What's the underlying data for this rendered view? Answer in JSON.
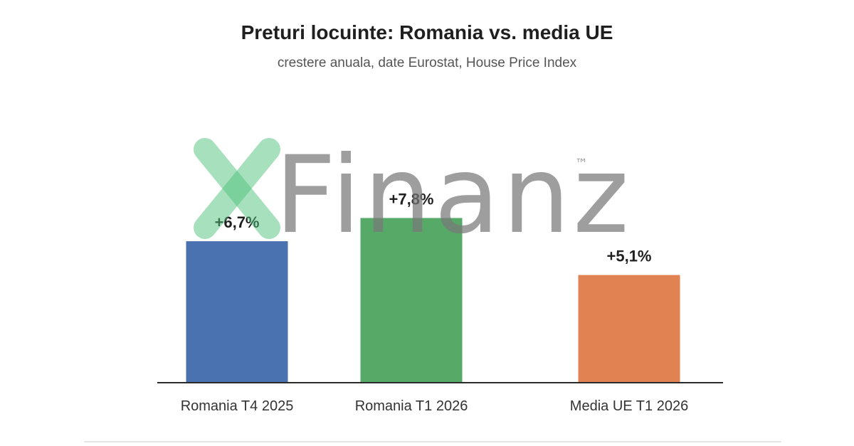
{
  "chart_data": {
    "type": "bar",
    "title": "Preturi locuinte: Romania vs. media UE",
    "subtitle": "crestere anuala, date Eurostat, House Price Index",
    "categories": [
      "Romania T4 2025",
      "Romania T1 2026",
      "Media UE T1 2026"
    ],
    "values": [
      6.7,
      7.8,
      5.1
    ],
    "value_labels": [
      "+6,7%",
      "+7,8%",
      "+5,1%"
    ],
    "colors": [
      "#4a71b0",
      "#57a968",
      "#e08252"
    ],
    "ylim": [
      0,
      9.5
    ],
    "grid": false,
    "legend": "none",
    "xlabel": "",
    "ylabel": ""
  },
  "watermark": {
    "text": "Finanz",
    "trademark": "™",
    "x_color": "#4fc27a",
    "text_color": "#787878"
  }
}
